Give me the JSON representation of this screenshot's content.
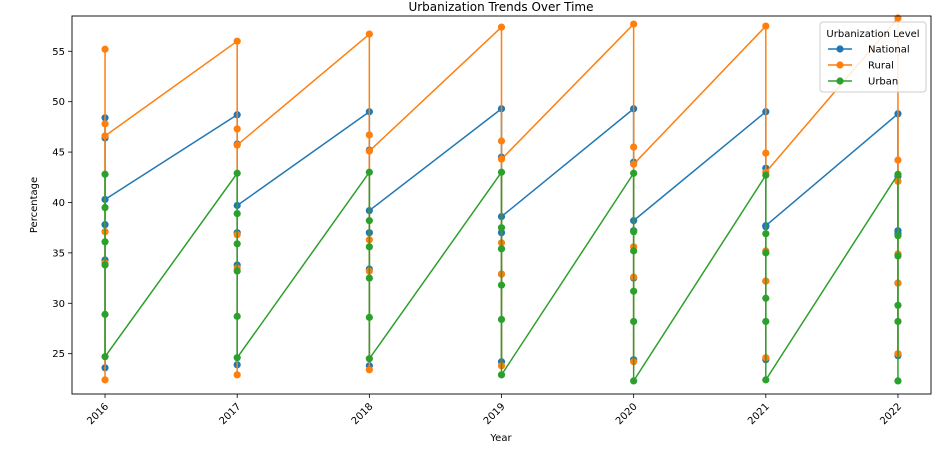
{
  "chart_data": {
    "type": "line",
    "title": "Urbanization Trends Over Time",
    "xlabel": "Year",
    "ylabel": "Percentage",
    "x_ticks": [
      "2016",
      "2017",
      "2018",
      "2019",
      "2020",
      "2021",
      "2022"
    ],
    "y_ticks": [
      25,
      30,
      35,
      40,
      45,
      50,
      55
    ],
    "xlim": [
      2015.75,
      2022.25
    ],
    "ylim": [
      21.0,
      58.5
    ],
    "grid": false,
    "legend": {
      "title": "Urbanization Level",
      "placement": "top-right"
    },
    "series": [
      {
        "name": "National",
        "color": "#1f77b4",
        "points": [
          [
            2016,
            48.4
          ],
          [
            2016,
            46.4
          ],
          [
            2016,
            37.8
          ],
          [
            2016,
            34.3
          ],
          [
            2016,
            23.6
          ],
          [
            2016,
            40.3
          ],
          [
            2017,
            48.7
          ],
          [
            2017,
            45.8
          ],
          [
            2017,
            37.0
          ],
          [
            2017,
            33.8
          ],
          [
            2017,
            23.9
          ],
          [
            2017,
            39.7
          ],
          [
            2018,
            49.0
          ],
          [
            2018,
            45.2
          ],
          [
            2018,
            37.0
          ],
          [
            2018,
            33.4
          ],
          [
            2018,
            23.8
          ],
          [
            2018,
            39.2
          ],
          [
            2019,
            49.3
          ],
          [
            2019,
            44.5
          ],
          [
            2019,
            37.0
          ],
          [
            2019,
            32.9
          ],
          [
            2019,
            24.2
          ],
          [
            2019,
            38.6
          ],
          [
            2020,
            49.3
          ],
          [
            2020,
            44.0
          ],
          [
            2020,
            37.2
          ],
          [
            2020,
            32.5
          ],
          [
            2020,
            24.4
          ],
          [
            2020,
            38.2
          ],
          [
            2021,
            49.0
          ],
          [
            2021,
            43.4
          ],
          [
            2021,
            37.6
          ],
          [
            2021,
            32.2
          ],
          [
            2021,
            24.4
          ],
          [
            2021,
            37.7
          ],
          [
            2022,
            48.8
          ],
          [
            2022,
            42.6
          ],
          [
            2022,
            37.2
          ],
          [
            2022,
            32.0
          ],
          [
            2022,
            24.8
          ],
          [
            2022,
            36.9
          ]
        ]
      },
      {
        "name": "Rural",
        "color": "#ff7f0e",
        "points": [
          [
            2016,
            55.2
          ],
          [
            2016,
            47.8
          ],
          [
            2016,
            37.1
          ],
          [
            2016,
            34.0
          ],
          [
            2016,
            22.4
          ],
          [
            2016,
            46.6
          ],
          [
            2017,
            56.0
          ],
          [
            2017,
            47.3
          ],
          [
            2017,
            36.8
          ],
          [
            2017,
            33.5
          ],
          [
            2017,
            22.9
          ],
          [
            2017,
            45.7
          ],
          [
            2018,
            56.7
          ],
          [
            2018,
            46.7
          ],
          [
            2018,
            36.3
          ],
          [
            2018,
            33.2
          ],
          [
            2018,
            23.4
          ],
          [
            2018,
            45.1
          ],
          [
            2019,
            57.4
          ],
          [
            2019,
            46.1
          ],
          [
            2019,
            36.0
          ],
          [
            2019,
            32.9
          ],
          [
            2019,
            23.8
          ],
          [
            2019,
            44.3
          ],
          [
            2020,
            57.7
          ],
          [
            2020,
            45.5
          ],
          [
            2020,
            35.6
          ],
          [
            2020,
            32.6
          ],
          [
            2020,
            24.2
          ],
          [
            2020,
            43.8
          ],
          [
            2021,
            57.5
          ],
          [
            2021,
            44.9
          ],
          [
            2021,
            35.2
          ],
          [
            2021,
            32.2
          ],
          [
            2021,
            24.6
          ],
          [
            2021,
            43.0
          ],
          [
            2022,
            58.3
          ],
          [
            2022,
            44.2
          ],
          [
            2022,
            34.9
          ],
          [
            2022,
            32.0
          ],
          [
            2022,
            25.0
          ],
          [
            2022,
            42.1
          ]
        ]
      },
      {
        "name": "Urban",
        "color": "#2ca02c",
        "points": [
          [
            2016,
            42.8
          ],
          [
            2016,
            39.5
          ],
          [
            2016,
            36.1
          ],
          [
            2016,
            33.8
          ],
          [
            2016,
            28.9
          ],
          [
            2016,
            24.7
          ],
          [
            2017,
            42.9
          ],
          [
            2017,
            38.9
          ],
          [
            2017,
            35.9
          ],
          [
            2017,
            33.2
          ],
          [
            2017,
            28.7
          ],
          [
            2017,
            24.6
          ],
          [
            2018,
            43.0
          ],
          [
            2018,
            38.2
          ],
          [
            2018,
            35.6
          ],
          [
            2018,
            32.5
          ],
          [
            2018,
            28.6
          ],
          [
            2018,
            24.5
          ],
          [
            2019,
            43.0
          ],
          [
            2019,
            37.5
          ],
          [
            2019,
            35.4
          ],
          [
            2019,
            31.8
          ],
          [
            2019,
            28.4
          ],
          [
            2019,
            22.9
          ],
          [
            2020,
            42.9
          ],
          [
            2020,
            37.1
          ],
          [
            2020,
            35.2
          ],
          [
            2020,
            31.2
          ],
          [
            2020,
            28.2
          ],
          [
            2020,
            22.3
          ],
          [
            2021,
            42.7
          ],
          [
            2021,
            36.9
          ],
          [
            2021,
            35.0
          ],
          [
            2021,
            30.5
          ],
          [
            2021,
            28.2
          ],
          [
            2021,
            22.4
          ],
          [
            2022,
            42.8
          ],
          [
            2022,
            36.7
          ],
          [
            2022,
            34.7
          ],
          [
            2022,
            29.8
          ],
          [
            2022,
            28.2
          ],
          [
            2022,
            22.3
          ]
        ]
      }
    ]
  }
}
